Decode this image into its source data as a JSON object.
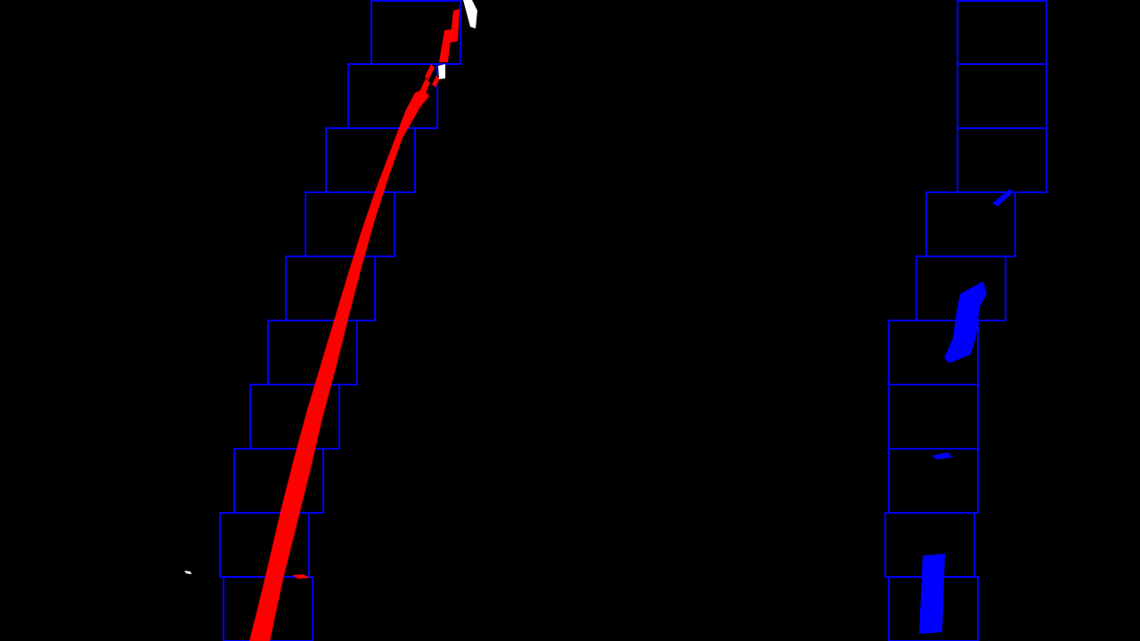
{
  "colors": {
    "background": "#000000",
    "window_outline": "#0000ff",
    "left_lane_pixels": "#ff0000",
    "right_lane_pixels": "#0000ff",
    "unassigned_pixels": "#ffffff"
  },
  "visualization": {
    "type": "sliding-window lane detection (binary warped image)",
    "window_count_per_lane": 10
  }
}
